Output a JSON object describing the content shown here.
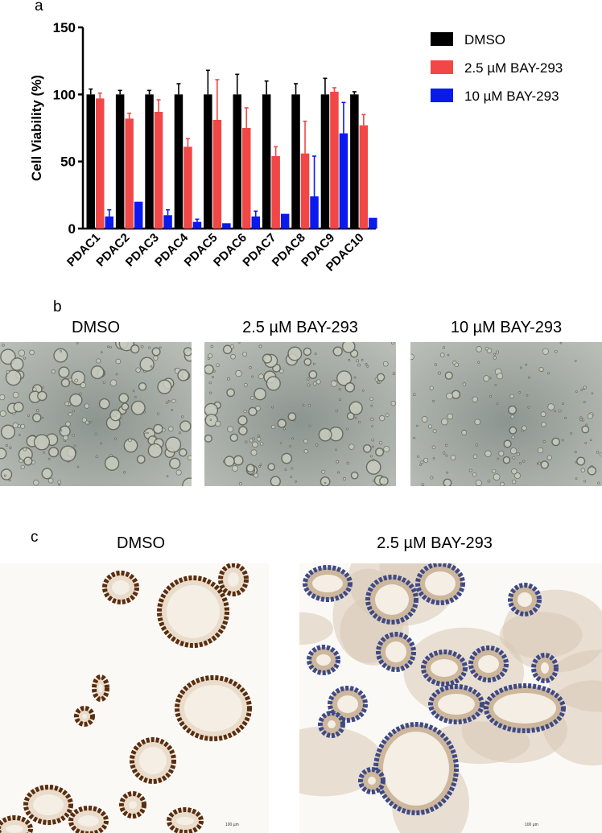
{
  "panels": {
    "a_label": "a",
    "b_label": "b",
    "c_label": "c"
  },
  "chart_data": {
    "type": "bar",
    "ylabel": "Cell Viability (%)",
    "xlabel": "",
    "ylim": [
      0,
      150
    ],
    "yticks": [
      0,
      50,
      100,
      150
    ],
    "categories": [
      "PDAC1",
      "PDAC2",
      "PDAC3",
      "PDAC4",
      "PDAC5",
      "PDAC6",
      "PDAC7",
      "PDAC8",
      "PDAC9",
      "PDAC10"
    ],
    "series": [
      {
        "name": "DMSO",
        "color": "#000000",
        "values": [
          100,
          100,
          100,
          100,
          100,
          100,
          100,
          100,
          100,
          100
        ],
        "errors": [
          4,
          3,
          3,
          8,
          18,
          15,
          10,
          8,
          12,
          2
        ]
      },
      {
        "name": "2.5 µM BAY-293",
        "color": "#f24747",
        "values": [
          97,
          82,
          87,
          61,
          81,
          75,
          54,
          56,
          102,
          77
        ],
        "errors": [
          4,
          4,
          9,
          6,
          30,
          15,
          7,
          24,
          3,
          8
        ]
      },
      {
        "name": "10 µM BAY-293",
        "color": "#0a1aef",
        "values": [
          9,
          20,
          10,
          5,
          4,
          9,
          11,
          24,
          71,
          8
        ],
        "errors": [
          5,
          0,
          4,
          2,
          0,
          4,
          0,
          30,
          23,
          0
        ]
      }
    ],
    "legend_position": "top-right",
    "grid": false
  },
  "panel_b": {
    "titles": [
      "DMSO",
      "2.5 µM BAY-293",
      "10 µM BAY-293"
    ]
  },
  "panel_c": {
    "titles": [
      "DMSO",
      "2.5 µM BAY-293"
    ],
    "scalebar_label": "100 µm"
  }
}
